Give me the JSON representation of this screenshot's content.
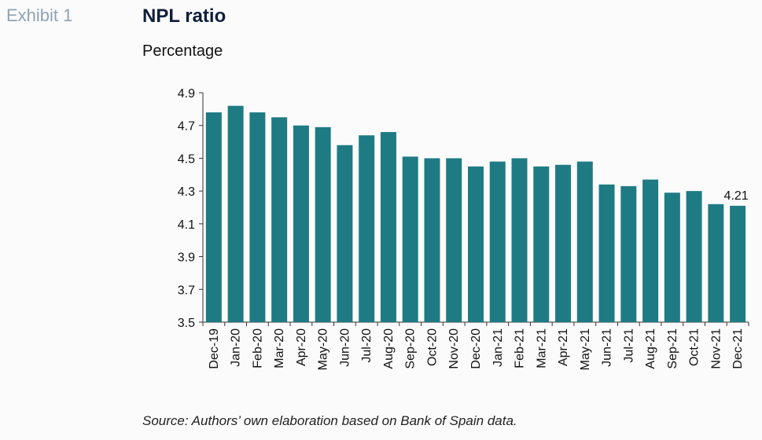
{
  "header": {
    "exhibit": "Exhibit 1",
    "title": "NPL ratio",
    "subtitle": "Percentage"
  },
  "footer": {
    "source": "Source: Authors’ own elaboration based on Bank of Spain data."
  },
  "colors": {
    "bar": "#1e7b84",
    "axis": "#333333"
  },
  "chart_data": {
    "type": "bar",
    "categories": [
      "Dec-19",
      "Jan-20",
      "Feb-20",
      "Mar-20",
      "Apr-20",
      "May-20",
      "Jun-20",
      "Jul-20",
      "Aug-20",
      "Sep-20",
      "Oct-20",
      "Nov-20",
      "Dec-20",
      "Jan-21",
      "Feb-21",
      "Mar-21",
      "Apr-21",
      "May-21",
      "Jun-21",
      "Jul-21",
      "Aug-21",
      "Sep-21",
      "Oct-21",
      "Nov-21",
      "Dec-21"
    ],
    "values": [
      4.78,
      4.82,
      4.78,
      4.75,
      4.7,
      4.69,
      4.58,
      4.64,
      4.66,
      4.51,
      4.5,
      4.5,
      4.45,
      4.48,
      4.5,
      4.45,
      4.46,
      4.48,
      4.34,
      4.33,
      4.37,
      4.29,
      4.3,
      4.22,
      4.21
    ],
    "ylim": [
      3.5,
      4.9
    ],
    "yticks": [
      "4.9",
      "4.7",
      "4.5",
      "4.3",
      "4.1",
      "3.9",
      "3.7",
      "3.5"
    ],
    "data_labels": [
      {
        "category": "Dec-21",
        "text": "4.21"
      }
    ],
    "grid": false,
    "legend": "none"
  }
}
